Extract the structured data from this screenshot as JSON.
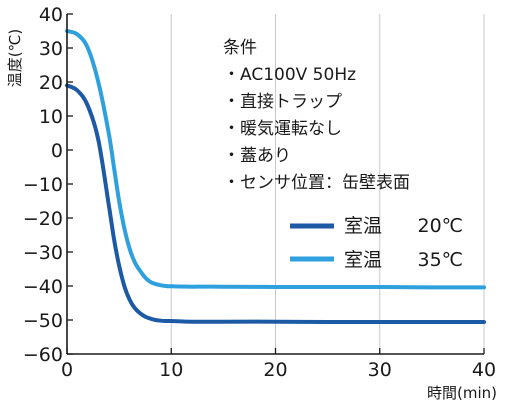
{
  "chart_data": {
    "type": "line",
    "title": "",
    "xlabel": "時間(min)",
    "ylabel": "温度(℃)",
    "xlim": [
      0,
      40
    ],
    "ylim": [
      -60,
      40
    ],
    "xticks": [
      0,
      10,
      20,
      30,
      40
    ],
    "yticks": [
      40,
      30,
      20,
      10,
      0,
      -10,
      -20,
      -30,
      -40,
      -50,
      -60
    ],
    "xtick_labels": [
      "0",
      "10",
      "20",
      "30",
      "40"
    ],
    "ytick_labels": [
      "40",
      "30",
      "20",
      "10",
      "0",
      "−10",
      "−20",
      "−30",
      "−40",
      "−50",
      "−60"
    ],
    "grid": "vertical",
    "legend_position": "right",
    "annotation": {
      "heading": "条件",
      "lines": [
        "・AC100V 50Hz",
        "・直接トラップ",
        "・暖気運転なし",
        "・蓋あり",
        "・センサ位置：缶壁表面"
      ]
    },
    "series": [
      {
        "name": "室温 20℃",
        "label_text": "室温",
        "label_value": "20℃",
        "color": "#1d5aa6",
        "x": [
          0,
          1,
          2,
          3,
          4,
          4.5,
          5,
          5.5,
          6,
          6.5,
          7,
          7.5,
          8,
          8.5,
          9,
          9.5,
          10,
          12,
          15,
          20,
          25,
          30,
          35,
          40
        ],
        "y": [
          19,
          17.5,
          13,
          3,
          -16,
          -26,
          -34,
          -40,
          -44,
          -46.5,
          -48,
          -49,
          -49.6,
          -50,
          -50.2,
          -50.3,
          -50.3,
          -50.5,
          -50.5,
          -50.5,
          -50.6,
          -50.6,
          -50.6,
          -50.6
        ]
      },
      {
        "name": "室温 35℃",
        "label_text": "室温",
        "label_value": "35℃",
        "color": "#2fa0de",
        "x": [
          0,
          1,
          2,
          3,
          4,
          4.5,
          5,
          5.5,
          6,
          6.5,
          7,
          7.5,
          8,
          8.5,
          9,
          9.5,
          10,
          12,
          15,
          20,
          25,
          30,
          35,
          40
        ],
        "y": [
          35,
          34,
          30,
          20,
          5,
          -5,
          -15,
          -23,
          -29,
          -33,
          -35.5,
          -37.5,
          -38.8,
          -39.4,
          -39.8,
          -40,
          -40.1,
          -40.2,
          -40.2,
          -40.3,
          -40.3,
          -40.3,
          -40.4,
          -40.4
        ]
      }
    ]
  }
}
